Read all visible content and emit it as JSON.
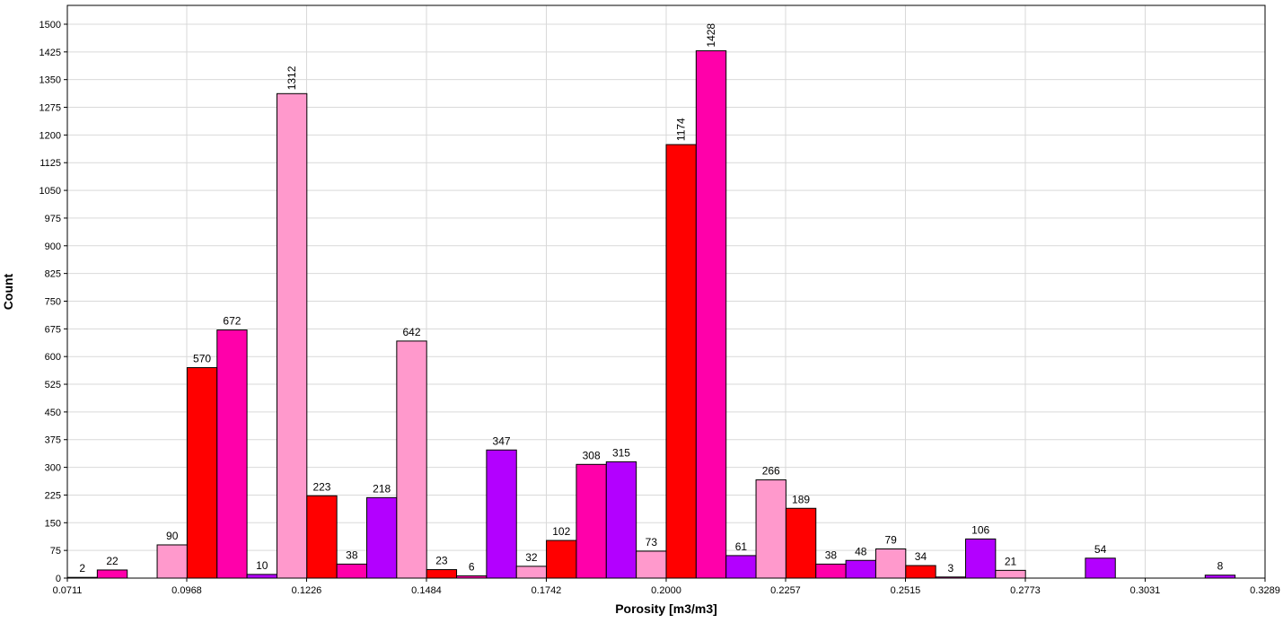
{
  "chart_data": {
    "type": "histogram",
    "x_label": "Porosity [m3/m3]",
    "y_label": "Count",
    "bins": [
      0.0711,
      0.077545,
      0.08399,
      0.090435,
      0.09688,
      0.103325,
      0.10977,
      0.116215,
      0.12266,
      0.129105,
      0.13555,
      0.141995,
      0.14844,
      0.154885,
      0.16133,
      0.167775,
      0.17422,
      0.180665,
      0.18711,
      0.193555,
      0.2,
      0.206445,
      0.21289,
      0.219335,
      0.22578,
      0.232225,
      0.23867,
      0.245115,
      0.25156,
      0.258005,
      0.26445,
      0.270895,
      0.27734,
      0.283785,
      0.29023,
      0.296675,
      0.30312,
      0.309565,
      0.31601,
      0.322455,
      0.3289
    ],
    "counts": [
      2,
      22,
      null,
      90,
      570,
      672,
      10,
      1312,
      223,
      38,
      218,
      642,
      23,
      6,
      347,
      32,
      102,
      308,
      315,
      73,
      1174,
      1428,
      61,
      266,
      189,
      38,
      48,
      79,
      34,
      3,
      106,
      21,
      null,
      null,
      54,
      null,
      null,
      null,
      8,
      null
    ],
    "colors": [
      "#ff0000",
      "#ff00aa",
      "#b300ff",
      "#ff99cc"
    ],
    "xlim": [
      0.0711,
      0.3289
    ],
    "xticks": [
      0.0711,
      0.0968,
      0.1226,
      0.1484,
      0.1742,
      {
        "value": 0.2,
        "label": "0.2000"
      },
      0.2257,
      0.2515,
      0.2773,
      0.3031,
      0.3289
    ],
    "ylim": [
      0,
      1551
    ],
    "yticks": [
      0,
      75,
      150,
      225,
      300,
      375,
      450,
      525,
      600,
      675,
      750,
      825,
      900,
      975,
      1050,
      1125,
      1200,
      1275,
      1350,
      1425,
      1500
    ],
    "grid": true
  }
}
